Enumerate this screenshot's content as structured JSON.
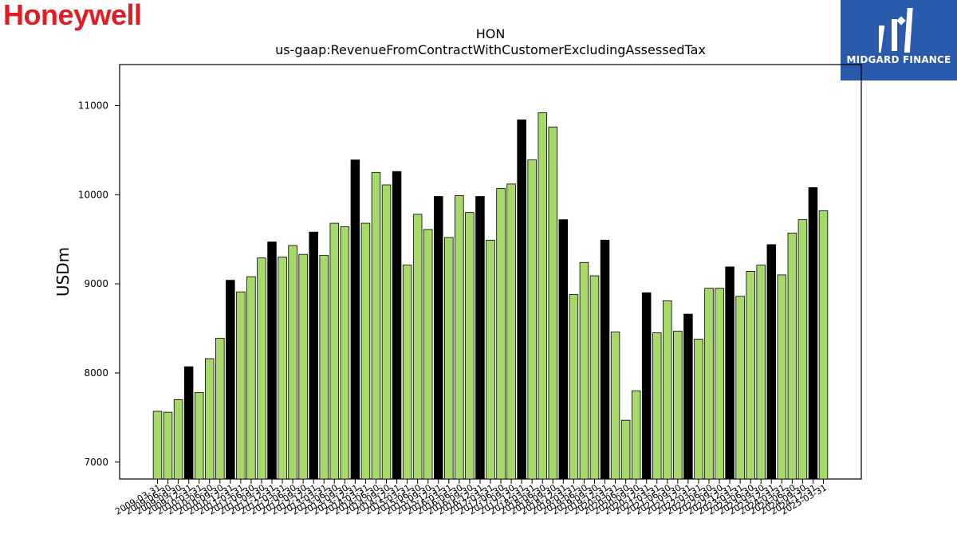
{
  "branding": {
    "company_logo_text": "Honeywell",
    "company_logo_color": "#e31b23",
    "partner_badge_text": "MIDGARD FINANCE",
    "partner_badge_color": "#2a5aab"
  },
  "chart_data": {
    "type": "bar",
    "title": "HON",
    "subtitle": "us-gaap:RevenueFromContractWithCustomerExcludingAssessedTax",
    "xlabel": "",
    "ylabel": "USDm",
    "ylim": [
      6810,
      11460
    ],
    "yticks": [
      7000,
      8000,
      9000,
      10000,
      11000
    ],
    "grid": false,
    "colors": {
      "quarter": "#a6d96a",
      "year_end": "#000000",
      "edge": "#000000"
    },
    "categories": [
      "2009-03-31",
      "2009-06-30",
      "2009-09-30",
      "2009-12-31",
      "2010-03-31",
      "2010-06-30",
      "2010-09-30",
      "2010-12-31",
      "2011-03-31",
      "2011-06-30",
      "2011-09-30",
      "2011-12-31",
      "2012-03-31",
      "2012-06-30",
      "2012-09-30",
      "2012-12-31",
      "2013-03-31",
      "2013-06-30",
      "2013-09-30",
      "2013-12-31",
      "2014-03-31",
      "2014-06-30",
      "2014-09-30",
      "2014-12-31",
      "2015-03-31",
      "2015-06-30",
      "2015-09-30",
      "2015-12-31",
      "2016-03-31",
      "2016-06-30",
      "2016-09-30",
      "2016-12-31",
      "2017-03-31",
      "2017-06-30",
      "2017-09-30",
      "2017-12-31",
      "2018-03-31",
      "2018-06-30",
      "2018-09-30",
      "2018-12-31",
      "2019-03-31",
      "2019-06-30",
      "2019-09-30",
      "2019-12-31",
      "2020-03-31",
      "2020-06-30",
      "2020-09-30",
      "2020-12-31",
      "2021-03-31",
      "2021-06-30",
      "2021-09-30",
      "2021-12-31",
      "2022-03-31",
      "2022-06-30",
      "2022-09-30",
      "2022-12-31",
      "2023-03-31",
      "2023-06-30",
      "2023-09-30",
      "2023-12-31",
      "2024-03-31",
      "2024-06-30",
      "2024-09-30",
      "2024-12-31",
      "2025-03-31"
    ],
    "values": [
      7570,
      7560,
      7700,
      8070,
      7780,
      8160,
      8390,
      9040,
      8910,
      9080,
      9290,
      9470,
      9300,
      9430,
      9330,
      9580,
      9320,
      9680,
      9640,
      10390,
      9680,
      10250,
      10110,
      10260,
      9210,
      9780,
      9610,
      9980,
      9520,
      9990,
      9800,
      9980,
      9490,
      10070,
      10120,
      10840,
      10390,
      10920,
      10760,
      9720,
      8880,
      9240,
      9090,
      9490,
      8460,
      7470,
      7800,
      8900,
      8450,
      8810,
      8470,
      8660,
      8380,
      8950,
      8950,
      9190,
      8860,
      9140,
      9210,
      9440,
      9100,
      9570,
      9720,
      10080,
      9820
    ],
    "year_end": [
      false,
      false,
      false,
      true,
      false,
      false,
      false,
      true,
      false,
      false,
      false,
      true,
      false,
      false,
      false,
      true,
      false,
      false,
      false,
      true,
      false,
      false,
      false,
      true,
      false,
      false,
      false,
      true,
      false,
      false,
      false,
      true,
      false,
      false,
      false,
      true,
      false,
      false,
      false,
      true,
      false,
      false,
      false,
      true,
      false,
      false,
      false,
      true,
      false,
      false,
      false,
      true,
      false,
      false,
      false,
      true,
      false,
      false,
      false,
      true,
      false,
      false,
      false,
      true,
      false
    ]
  }
}
